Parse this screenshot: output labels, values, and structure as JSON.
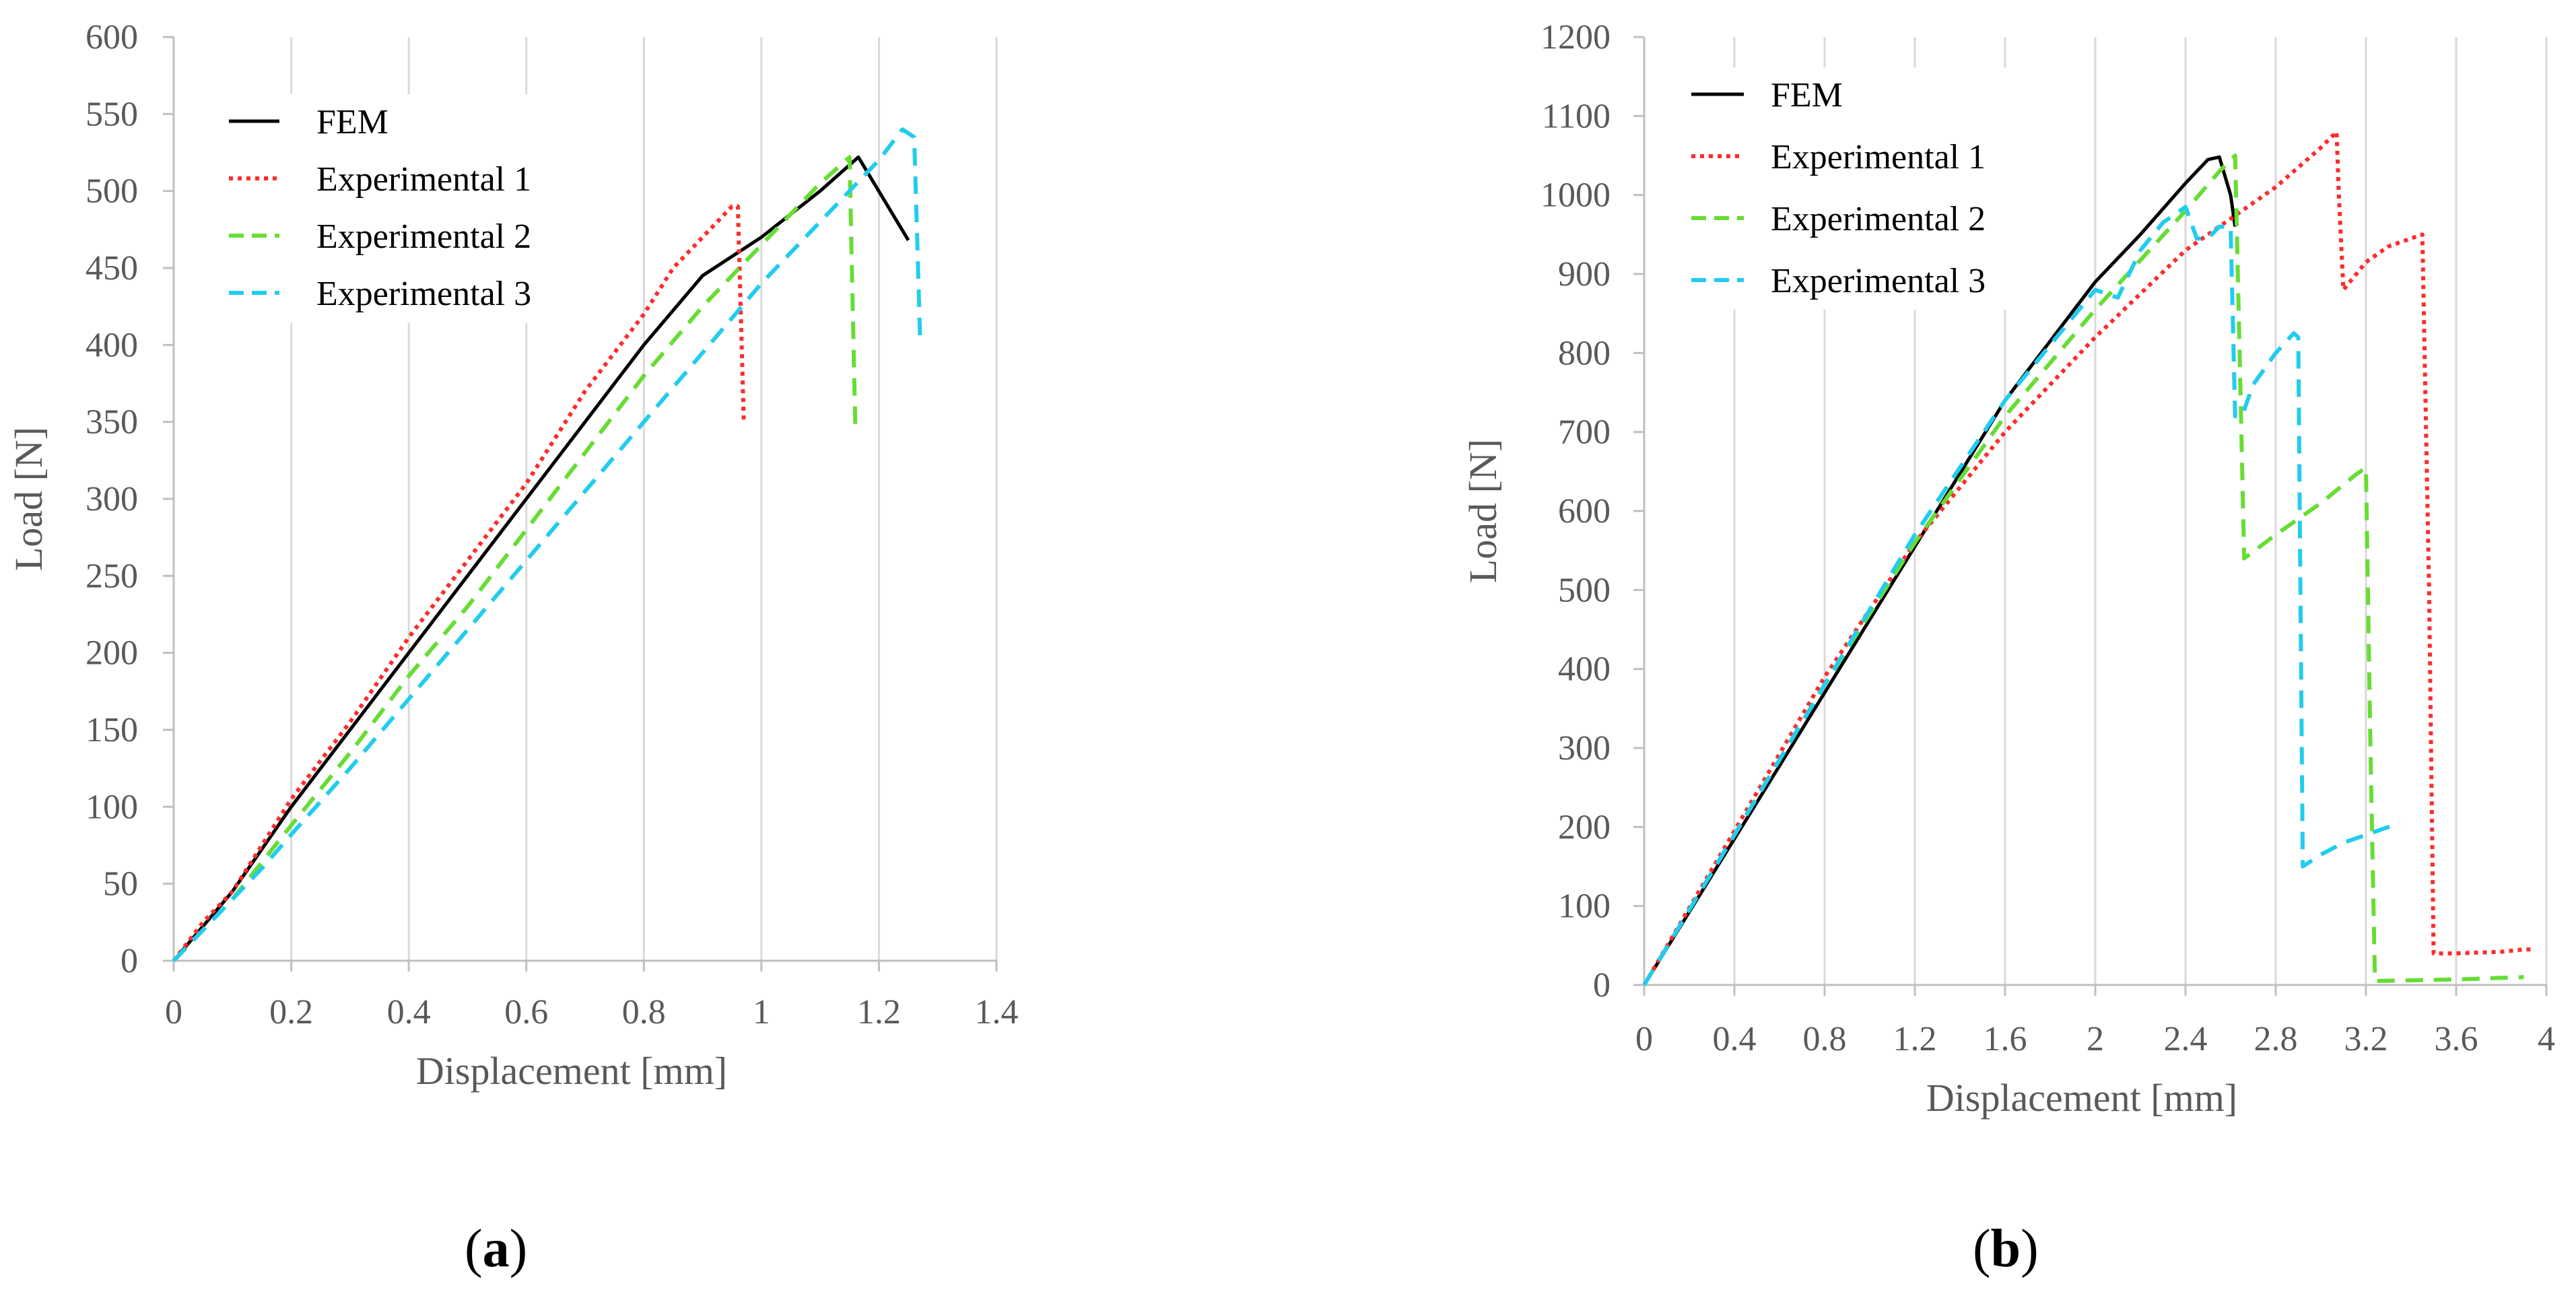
{
  "charts": [
    {
      "id": "a",
      "caption_open": "(",
      "caption_letter": "a",
      "caption_close": ")",
      "chart_data": {
        "type": "line",
        "title": "",
        "xlabel": "Displacement [mm]",
        "ylabel": "Load [N]",
        "xlim": [
          0,
          1.4
        ],
        "ylim": [
          0,
          600
        ],
        "x_ticks": [
          0,
          0.2,
          0.4,
          0.6,
          0.8,
          1,
          1.2,
          1.4
        ],
        "x_tick_labels": [
          "0",
          "0.2",
          "0.4",
          "0.6",
          "0.8",
          "1",
          "1.2",
          "1.4"
        ],
        "y_ticks": [
          0,
          50,
          100,
          150,
          200,
          250,
          300,
          350,
          400,
          450,
          500,
          550,
          600
        ],
        "y_tick_labels": [
          "0",
          "50",
          "100",
          "150",
          "200",
          "250",
          "300",
          "350",
          "400",
          "450",
          "500",
          "550",
          "600"
        ],
        "grid": "vertical",
        "legend_position": "top-left",
        "series": [
          {
            "name": "FEM",
            "color": "#000000",
            "style": "solid",
            "x": [
              0,
              0.1,
              0.2,
              0.3,
              0.4,
              0.5,
              0.6,
              0.7,
              0.8,
              0.9,
              1.0,
              1.1,
              1.165,
              1.25
            ],
            "y": [
              0,
              45,
              100,
              150,
              200,
              250,
              300,
              350,
              400,
              445,
              470,
              500,
              522,
              468
            ]
          },
          {
            "name": "Experimental 1",
            "color": "#ff2b2b",
            "style": "dotted",
            "x": [
              0,
              0.05,
              0.1,
              0.2,
              0.3,
              0.4,
              0.5,
              0.6,
              0.7,
              0.8,
              0.85,
              0.9,
              0.95,
              0.96,
              0.965,
              0.97
            ],
            "y": [
              0,
              25,
              45,
              105,
              155,
              210,
              260,
              310,
              370,
              420,
              450,
              470,
              490,
              490,
              420,
              350
            ]
          },
          {
            "name": "Experimental 2",
            "color": "#66dd33",
            "style": "dashed",
            "x": [
              0,
              0.1,
              0.2,
              0.3,
              0.4,
              0.5,
              0.6,
              0.7,
              0.8,
              0.9,
              1.0,
              1.1,
              1.15,
              1.155,
              1.16
            ],
            "y": [
              0,
              40,
              88,
              135,
              185,
              230,
              280,
              330,
              380,
              425,
              465,
              505,
              522,
              430,
              345
            ]
          },
          {
            "name": "Experimental 3",
            "color": "#22ccee",
            "style": "dashed",
            "x": [
              0,
              0.1,
              0.15,
              0.2,
              0.3,
              0.4,
              0.5,
              0.6,
              0.7,
              0.8,
              0.9,
              1.0,
              1.1,
              1.2,
              1.24,
              1.26,
              1.265,
              1.27
            ],
            "y": [
              0,
              40,
              60,
              82,
              125,
              170,
              215,
              260,
              305,
              350,
              395,
              440,
              480,
              520,
              540,
              535,
              470,
              405
            ]
          }
        ]
      }
    },
    {
      "id": "b",
      "caption_open": "(",
      "caption_letter": "b",
      "caption_close": ")",
      "chart_data": {
        "type": "line",
        "title": "",
        "xlabel": "Displacement [mm]",
        "ylabel": "Load [N]",
        "xlim": [
          0,
          4
        ],
        "ylim": [
          0,
          1200
        ],
        "x_ticks": [
          0,
          0.4,
          0.8,
          1.2,
          1.6,
          2,
          2.4,
          2.8,
          3.2,
          3.6,
          4
        ],
        "x_tick_labels": [
          "0",
          "0.4",
          "0.8",
          "1.2",
          "1.6",
          "2",
          "2.4",
          "2.8",
          "3.2",
          "3.6",
          "4"
        ],
        "y_ticks": [
          0,
          100,
          200,
          300,
          400,
          500,
          600,
          700,
          800,
          900,
          1000,
          1100,
          1200
        ],
        "y_tick_labels": [
          "0",
          "100",
          "200",
          "300",
          "400",
          "500",
          "600",
          "700",
          "800",
          "900",
          "1000",
          "1100",
          "1200"
        ],
        "grid": "vertical",
        "legend_position": "top-left",
        "series": [
          {
            "name": "FEM",
            "color": "#000000",
            "style": "solid",
            "x": [
              0,
              0.4,
              0.8,
              1.2,
              1.6,
              2.0,
              2.2,
              2.4,
              2.5,
              2.55,
              2.6,
              2.62
            ],
            "y": [
              0,
              185,
              370,
              555,
              740,
              890,
              950,
              1015,
              1045,
              1048,
              1000,
              960
            ]
          },
          {
            "name": "Experimental 1",
            "color": "#ff2b2b",
            "style": "dotted",
            "x": [
              0,
              0.4,
              0.8,
              1.2,
              1.6,
              2.0,
              2.4,
              2.8,
              3.0,
              3.07,
              3.08,
              3.1,
              3.2,
              3.3,
              3.4,
              3.45,
              3.48,
              3.5,
              3.6,
              3.8,
              3.9,
              3.95
            ],
            "y": [
              0,
              195,
              390,
              560,
              700,
              820,
              930,
              1010,
              1060,
              1080,
              1000,
              880,
              915,
              935,
              945,
              950,
              500,
              40,
              40,
              42,
              45,
              45
            ]
          },
          {
            "name": "Experimental 2",
            "color": "#66dd33",
            "style": "dashed",
            "x": [
              0,
              0.4,
              0.8,
              1.2,
              1.6,
              2.0,
              2.4,
              2.55,
              2.62,
              2.64,
              2.66,
              2.8,
              3.0,
              3.15,
              3.2,
              3.22,
              3.24,
              3.6,
              3.9
            ],
            "y": [
              0,
              190,
              380,
              560,
              720,
              855,
              980,
              1030,
              1050,
              800,
              540,
              570,
              610,
              645,
              655,
              300,
              5,
              7,
              10
            ]
          },
          {
            "name": "Experimental 3",
            "color": "#22ccee",
            "style": "dashed",
            "x": [
              0,
              0.4,
              0.8,
              1.2,
              1.6,
              1.8,
              2.0,
              2.1,
              2.2,
              2.3,
              2.4,
              2.45,
              2.5,
              2.55,
              2.6,
              2.62,
              2.65,
              2.7,
              2.8,
              2.88,
              2.9,
              2.92,
              3.0,
              3.1,
              3.3,
              3.35
            ],
            "y": [
              0,
              190,
              380,
              570,
              740,
              810,
              880,
              870,
              930,
              965,
              985,
              945,
              945,
              960,
              960,
              720,
              720,
              760,
              800,
              825,
              820,
              150,
              165,
              180,
              200,
              205
            ]
          }
        ]
      }
    }
  ]
}
